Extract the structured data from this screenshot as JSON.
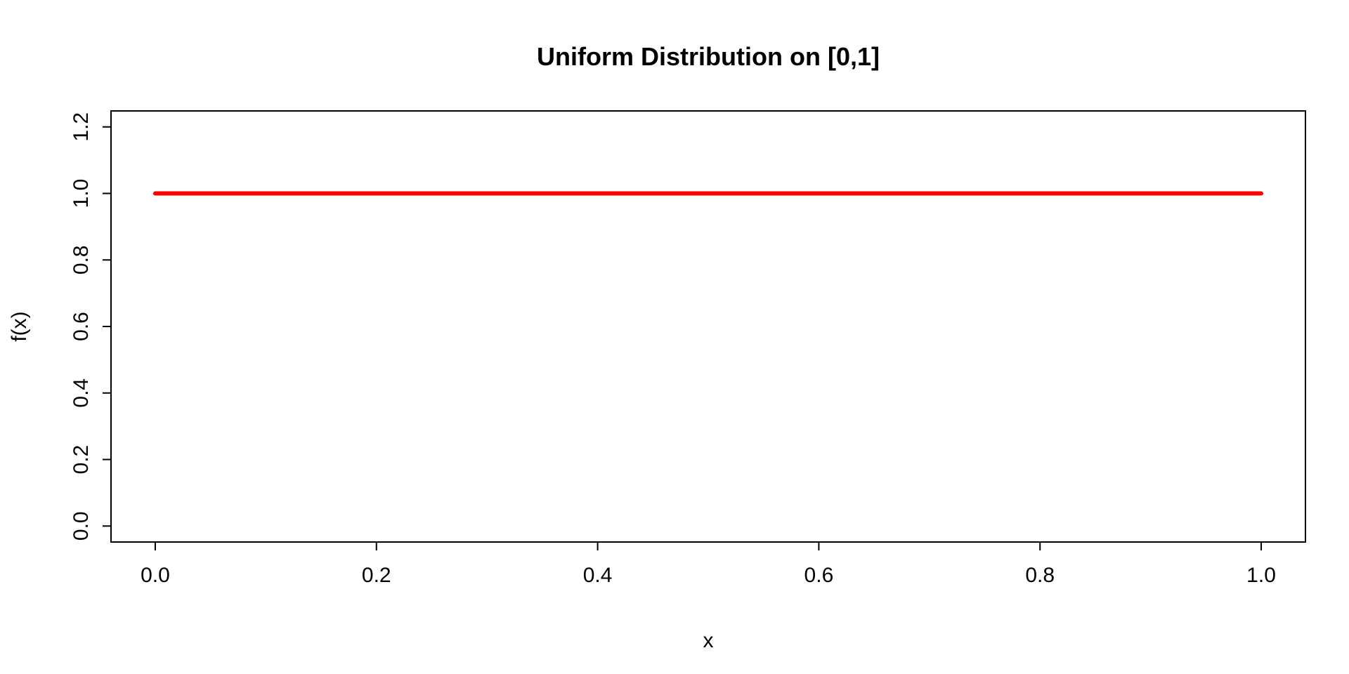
{
  "chart_data": {
    "type": "line",
    "title": "Uniform Distribution on [0,1]",
    "xlabel": "x",
    "ylabel": "f(x)",
    "xlim": [
      -0.04,
      1.04
    ],
    "ylim": [
      -0.048,
      1.248
    ],
    "x_ticks": [
      0.0,
      0.2,
      0.4,
      0.6,
      0.8,
      1.0
    ],
    "x_tick_labels": [
      "0.0",
      "0.2",
      "0.4",
      "0.6",
      "0.8",
      "1.0"
    ],
    "y_ticks": [
      0.0,
      0.2,
      0.4,
      0.6,
      0.8,
      1.0,
      1.2
    ],
    "y_tick_labels": [
      "0.0",
      "0.2",
      "0.4",
      "0.6",
      "0.8",
      "1.0",
      "1.2"
    ],
    "grid": false,
    "legend": "none",
    "series": [
      {
        "color": "#ff0000",
        "x": [
          0.0,
          1.0
        ],
        "y": [
          1.0,
          1.0
        ]
      }
    ]
  }
}
